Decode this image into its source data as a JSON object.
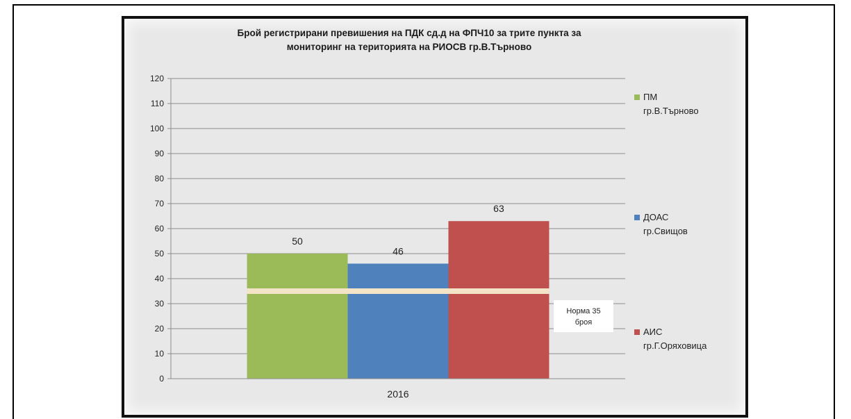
{
  "chart_data": {
    "type": "bar",
    "title": "Брой регистрирани превишения на ПДК сд.д  на ФПЧ10 за трите пункта за",
    "subtitle": "мониторинг на територията на РИОСВ гр.В.Търново",
    "categories": [
      "2016"
    ],
    "series": [
      {
        "name": "ПМ гр.В.Търново",
        "legend_lines": [
          "ПМ",
          "гр.В.Търново"
        ],
        "values": [
          50
        ],
        "color": "#9bbb59"
      },
      {
        "name": "ДОАС гр.Свищов",
        "legend_lines": [
          "ДОАС",
          "гр.Свищов"
        ],
        "values": [
          46
        ],
        "color": "#4f81bd"
      },
      {
        "name": "АИС гр.Г.Оряховица",
        "legend_lines": [
          "АИС",
          "гр.Г.Оряховица"
        ],
        "values": [
          63
        ],
        "color": "#c0504d"
      }
    ],
    "ylim": [
      0,
      120
    ],
    "yticks": [
      0,
      10,
      20,
      30,
      40,
      50,
      60,
      70,
      80,
      90,
      100,
      110,
      120
    ],
    "grid": true,
    "legend_position": "right",
    "reference_line": {
      "value": 35,
      "label_lines": [
        "Норма 35",
        "броя"
      ],
      "color": "#f3e4c8"
    },
    "data_labels": true
  }
}
